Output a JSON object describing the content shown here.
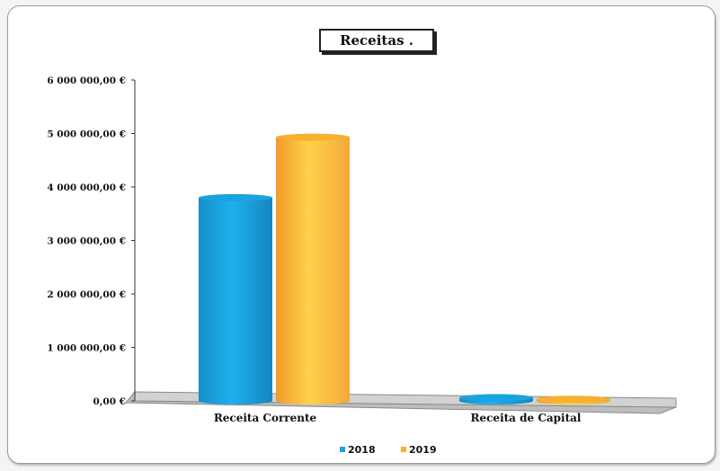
{
  "chart_data": {
    "type": "bar",
    "title": "Receitas .",
    "categories": [
      "Receita Corrente",
      "Receita de Capital"
    ],
    "series": [
      {
        "name": "2018",
        "values": [
          3800000,
          60000
        ],
        "color": "#1aa3e0"
      },
      {
        "name": "2019",
        "values": [
          4930000,
          30000
        ],
        "color": "#f7b030"
      }
    ],
    "ylim": [
      0,
      6000000
    ],
    "yticks": [
      0,
      1000000,
      2000000,
      3000000,
      4000000,
      5000000,
      6000000
    ],
    "ytick_labels": [
      "0,00 €",
      "1 000 000,00 €",
      "2 000 000,00 €",
      "3 000 000,00 €",
      "4 000 000,00 €",
      "5 000 000,00 €",
      "6 000 000,00 €"
    ],
    "xlabel": "",
    "ylabel": "",
    "grid": false,
    "legend_position": "bottom"
  }
}
